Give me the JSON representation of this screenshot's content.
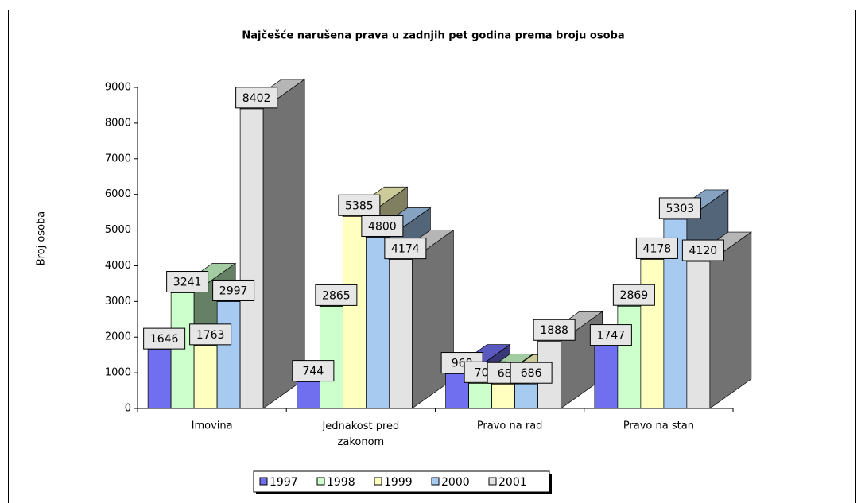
{
  "chart_data": {
    "type": "bar3d",
    "title": "Najčešće narušena prava u zadnjih pet godina prema broju osoba",
    "y_label": "Broj osoba",
    "categories": [
      "Imovina",
      "Jednakost pred zakonom",
      "Pravo na rad",
      "Pravo na stan"
    ],
    "series": [
      {
        "name": "1997",
        "color": "#6f6ff0",
        "values": [
          1646,
          744,
          968,
          1747
        ]
      },
      {
        "name": "1998",
        "color": "#ccffcc",
        "values": [
          3241,
          2865,
          706,
          2869
        ]
      },
      {
        "name": "1999",
        "color": "#ffffc0",
        "values": [
          1763,
          5385,
          685,
          4178
        ]
      },
      {
        "name": "2000",
        "color": "#a6caf0",
        "values": [
          2997,
          4800,
          686,
          5303
        ]
      },
      {
        "name": "2001",
        "color": "#e3e3e3",
        "values": [
          8402,
          4174,
          1888,
          4120
        ]
      }
    ],
    "ylim": [
      0,
      9000
    ],
    "yticks": [
      0,
      1000,
      2000,
      3000,
      4000,
      5000,
      6000,
      7000,
      8000,
      9000
    ],
    "legend": "bottom"
  }
}
